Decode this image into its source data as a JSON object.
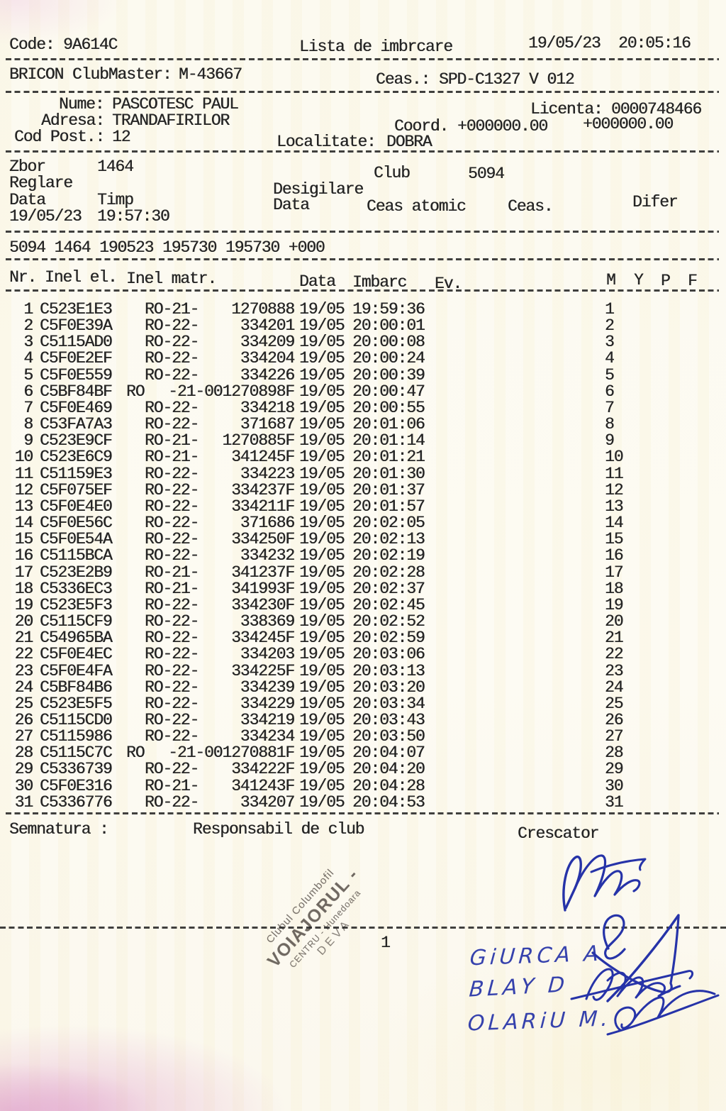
{
  "header": {
    "code_label": "Code:",
    "code_value": "9A614C",
    "title": "Lista de imbrcare",
    "datetime": "19/05/23  20:05:16",
    "clubmaster_label": "BRICON ClubMaster:",
    "clubmaster_value": "M-43667",
    "ceas_label": "Ceas.:",
    "ceas_value": "SPD-C1327 V 012"
  },
  "owner": {
    "nume_label": "Nume:",
    "nume_value": "PASCOTESC PAUL",
    "licenta_label": "Licenta:",
    "licenta_value": "0000748466",
    "adresa_label": "Adresa:",
    "adresa_value": "TRANDAFIRILOR",
    "coord_label": "Coord.",
    "coord_value_1": "+000000.00",
    "coord_value_2": "+000000.00",
    "codpost_label": "Cod Post.:",
    "codpost_value": "12",
    "localitate_label": "Localitate:",
    "localitate_value": "DOBRA"
  },
  "flight": {
    "zbor_label": "Zbor",
    "zbor_value": "1464",
    "club_label": "Club",
    "club_value": "5094",
    "reglare_label": "Reglare",
    "desigilare_label": "Desigilare",
    "data_label": "Data",
    "timp_label": "Timp",
    "data2_label": "Data",
    "ceas_atomic_label": "Ceas atomic",
    "ceas2_label": "Ceas.",
    "difer_label": "Difer",
    "reglare_data": "19/05/23",
    "reglare_timp": "19:57:30",
    "summary_line": "5094 1464 190523 195730 195730 +000"
  },
  "table": {
    "headers": {
      "nr": "Nr.",
      "inel_el": "Inel el.",
      "inel_matr": "Inel matr.",
      "data": "Data",
      "imbarc": "Imbarc",
      "ev": "Ev.",
      "m": "M",
      "y": "Y",
      "p": "P",
      "f": "F"
    },
    "rows": [
      {
        "nr": "1",
        "inel": "C523E1E3",
        "prefix": "RO-21-",
        "matr": "1270888",
        "data": "19/05",
        "imbarc": "19:59:36",
        "seq": "1"
      },
      {
        "nr": "2",
        "inel": "C5F0E39A",
        "prefix": "RO-22-",
        "matr": "334201",
        "data": "19/05",
        "imbarc": "20:00:01",
        "seq": "2"
      },
      {
        "nr": "3",
        "inel": "C5115AD0",
        "prefix": "RO-22-",
        "matr": "334209",
        "data": "19/05",
        "imbarc": "20:00:08",
        "seq": "3"
      },
      {
        "nr": "4",
        "inel": "C5F0E2EF",
        "prefix": "RO-22-",
        "matr": "334204",
        "data": "19/05",
        "imbarc": "20:00:24",
        "seq": "4"
      },
      {
        "nr": "5",
        "inel": "C5F0E559",
        "prefix": "RO-22-",
        "matr": "334226",
        "data": "19/05",
        "imbarc": "20:00:39",
        "seq": "5"
      },
      {
        "nr": "6",
        "inel": "C5BF84BF",
        "prefix": "RO",
        "matr": "-21-001270898F",
        "data": "19/05",
        "imbarc": "20:00:47",
        "seq": "6"
      },
      {
        "nr": "7",
        "inel": "C5F0E469",
        "prefix": "RO-22-",
        "matr": "334218",
        "data": "19/05",
        "imbarc": "20:00:55",
        "seq": "7"
      },
      {
        "nr": "8",
        "inel": "C53FA7A3",
        "prefix": "RO-22-",
        "matr": "371687",
        "data": "19/05",
        "imbarc": "20:01:06",
        "seq": "8"
      },
      {
        "nr": "9",
        "inel": "C523E9CF",
        "prefix": "RO-21-",
        "matr": "1270885F",
        "data": "19/05",
        "imbarc": "20:01:14",
        "seq": "9"
      },
      {
        "nr": "10",
        "inel": "C523E6C9",
        "prefix": "RO-21-",
        "matr": "341245F",
        "data": "19/05",
        "imbarc": "20:01:21",
        "seq": "10"
      },
      {
        "nr": "11",
        "inel": "C51159E3",
        "prefix": "RO-22-",
        "matr": "334223",
        "data": "19/05",
        "imbarc": "20:01:30",
        "seq": "11"
      },
      {
        "nr": "12",
        "inel": "C5F075EF",
        "prefix": "RO-22-",
        "matr": "334237F",
        "data": "19/05",
        "imbarc": "20:01:37",
        "seq": "12"
      },
      {
        "nr": "13",
        "inel": "C5F0E4E0",
        "prefix": "RO-22-",
        "matr": "334211F",
        "data": "19/05",
        "imbarc": "20:01:57",
        "seq": "13"
      },
      {
        "nr": "14",
        "inel": "C5F0E56C",
        "prefix": "RO-22-",
        "matr": "371686",
        "data": "19/05",
        "imbarc": "20:02:05",
        "seq": "14"
      },
      {
        "nr": "15",
        "inel": "C5F0E54A",
        "prefix": "RO-22-",
        "matr": "334250F",
        "data": "19/05",
        "imbarc": "20:02:13",
        "seq": "15"
      },
      {
        "nr": "16",
        "inel": "C5115BCA",
        "prefix": "RO-22-",
        "matr": "334232",
        "data": "19/05",
        "imbarc": "20:02:19",
        "seq": "16"
      },
      {
        "nr": "17",
        "inel": "C523E2B9",
        "prefix": "RO-21-",
        "matr": "341237F",
        "data": "19/05",
        "imbarc": "20:02:28",
        "seq": "17"
      },
      {
        "nr": "18",
        "inel": "C5336EC3",
        "prefix": "RO-21-",
        "matr": "341993F",
        "data": "19/05",
        "imbarc": "20:02:37",
        "seq": "18"
      },
      {
        "nr": "19",
        "inel": "C523E5F3",
        "prefix": "RO-22-",
        "matr": "334230F",
        "data": "19/05",
        "imbarc": "20:02:45",
        "seq": "19"
      },
      {
        "nr": "20",
        "inel": "C5115CF9",
        "prefix": "RO-22-",
        "matr": "338369",
        "data": "19/05",
        "imbarc": "20:02:52",
        "seq": "20"
      },
      {
        "nr": "21",
        "inel": "C54965BA",
        "prefix": "RO-22-",
        "matr": "334245F",
        "data": "19/05",
        "imbarc": "20:02:59",
        "seq": "21"
      },
      {
        "nr": "22",
        "inel": "C5F0E4EC",
        "prefix": "RO-22-",
        "matr": "334203",
        "data": "19/05",
        "imbarc": "20:03:06",
        "seq": "22"
      },
      {
        "nr": "23",
        "inel": "C5F0E4FA",
        "prefix": "RO-22-",
        "matr": "334225F",
        "data": "19/05",
        "imbarc": "20:03:13",
        "seq": "23"
      },
      {
        "nr": "24",
        "inel": "C5BF84B6",
        "prefix": "RO-22-",
        "matr": "334239",
        "data": "19/05",
        "imbarc": "20:03:20",
        "seq": "24"
      },
      {
        "nr": "25",
        "inel": "C523E5F5",
        "prefix": "RO-22-",
        "matr": "334229",
        "data": "19/05",
        "imbarc": "20:03:34",
        "seq": "25"
      },
      {
        "nr": "26",
        "inel": "C5115CD0",
        "prefix": "RO-22-",
        "matr": "334219",
        "data": "19/05",
        "imbarc": "20:03:43",
        "seq": "26"
      },
      {
        "nr": "27",
        "inel": "C5115986",
        "prefix": "RO-22-",
        "matr": "334234",
        "data": "19/05",
        "imbarc": "20:03:50",
        "seq": "27"
      },
      {
        "nr": "28",
        "inel": "C5115C7C",
        "prefix": "RO",
        "matr": "-21-001270881F",
        "data": "19/05",
        "imbarc": "20:04:07",
        "seq": "28"
      },
      {
        "nr": "29",
        "inel": "C5336739",
        "prefix": "RO-22-",
        "matr": "334222F",
        "data": "19/05",
        "imbarc": "20:04:20",
        "seq": "29"
      },
      {
        "nr": "30",
        "inel": "C5F0E316",
        "prefix": "RO-21-",
        "matr": "341243F",
        "data": "19/05",
        "imbarc": "20:04:28",
        "seq": "30"
      },
      {
        "nr": "31",
        "inel": "C5336776",
        "prefix": "RO-22-",
        "matr": "334207",
        "data": "19/05",
        "imbarc": "20:04:53",
        "seq": "31"
      }
    ]
  },
  "footer": {
    "semnatura_label": "Semnatura :",
    "responsabil_label": "Responsabil de club",
    "crescator_label": "Crescator",
    "page_number": "1"
  },
  "stamp": {
    "line1": "Clubul Columbofil",
    "line2": "VOIAJORUL -",
    "line3": "CENTRU - Hunedoara",
    "line4": "DEVA"
  },
  "handwriting": {
    "name1": "GiURCA A",
    "name2": "BLAY D",
    "name3": "OLARiU M."
  },
  "colors": {
    "ink": "#262626",
    "pen": "#2633a8",
    "stamp": "#4c443e"
  }
}
